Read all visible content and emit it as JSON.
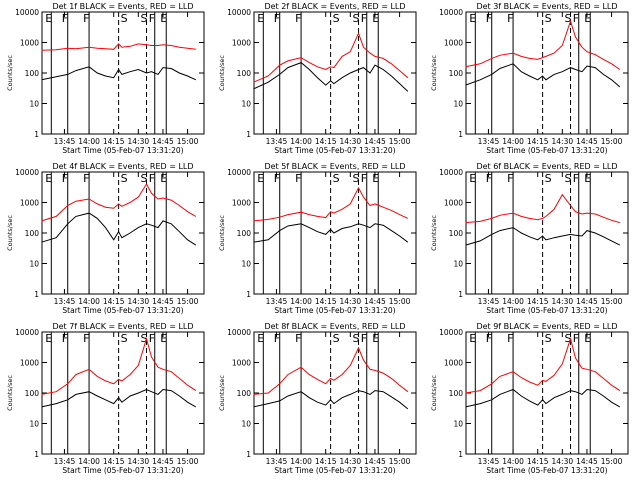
{
  "figure": {
    "colors": {
      "events": "#000000",
      "lld": "#ff0000",
      "frame": "#000000",
      "background": "#ffffff"
    },
    "yticks": [
      1,
      10,
      100,
      1000,
      10000
    ],
    "ytick_labels": [
      "1",
      "10",
      "100",
      "1000",
      "10000"
    ],
    "ylabel": "Counts/sec",
    "xlabel": "Start Time (05-Feb-07 13:31:20)",
    "xticks": [
      "13:45",
      "14:00",
      "14:15",
      "14:30",
      "14:45",
      "15:00"
    ],
    "markers": [
      {
        "label": "E",
        "time": "13:37",
        "style": "solid"
      },
      {
        "label": "F",
        "time": "13:47",
        "style": "solid"
      },
      {
        "label": "F",
        "time": "14:00",
        "style": "solid"
      },
      {
        "label": "S",
        "time": "14:18",
        "style": "dashed"
      },
      {
        "label": "S",
        "time": "14:35",
        "style": "dashed"
      },
      {
        "label": "F",
        "time": "14:40",
        "style": "solid"
      },
      {
        "label": "E",
        "time": "14:47",
        "style": "solid"
      }
    ]
  },
  "chart_data": [
    {
      "type": "line",
      "title": "Det 1f BLACK = Events, RED = LLD",
      "ylim": [
        1,
        10000
      ],
      "yscale": "log",
      "x": [
        "13:31",
        "13:40",
        "13:47",
        "13:52",
        "14:00",
        "14:05",
        "14:10",
        "14:15",
        "14:18",
        "14:20",
        "14:25",
        "14:30",
        "14:35",
        "14:38",
        "14:42",
        "14:45",
        "14:50",
        "14:55",
        "15:00",
        "15:05"
      ],
      "series": [
        {
          "name": "Events",
          "values": [
            60,
            75,
            90,
            120,
            160,
            100,
            80,
            70,
            130,
            90,
            110,
            130,
            100,
            110,
            90,
            150,
            140,
            100,
            80,
            60
          ]
        },
        {
          "name": "LLD",
          "values": [
            560,
            580,
            650,
            620,
            700,
            650,
            620,
            600,
            900,
            700,
            750,
            900,
            850,
            800,
            800,
            850,
            800,
            700,
            650,
            600
          ]
        }
      ]
    },
    {
      "type": "line",
      "title": "Det 2f BLACK = Events, RED = LLD",
      "ylim": [
        1,
        10000
      ],
      "yscale": "log",
      "x": [
        "13:31",
        "13:40",
        "13:47",
        "13:52",
        "14:00",
        "14:05",
        "14:10",
        "14:15",
        "14:18",
        "14:20",
        "14:25",
        "14:30",
        "14:35",
        "14:38",
        "14:42",
        "14:45",
        "14:50",
        "14:55",
        "15:00",
        "15:05"
      ],
      "series": [
        {
          "name": "Events",
          "values": [
            30,
            50,
            90,
            150,
            220,
            130,
            70,
            40,
            55,
            45,
            70,
            100,
            130,
            150,
            100,
            180,
            130,
            80,
            45,
            25
          ]
        },
        {
          "name": "LLD",
          "values": [
            50,
            80,
            180,
            250,
            320,
            220,
            160,
            130,
            160,
            150,
            350,
            500,
            2000,
            700,
            450,
            350,
            300,
            200,
            120,
            70
          ]
        }
      ]
    },
    {
      "type": "line",
      "title": "Det 3f BLACK = Events, RED = LLD",
      "ylim": [
        1,
        10000
      ],
      "yscale": "log",
      "x": [
        "13:31",
        "13:40",
        "13:47",
        "13:52",
        "14:00",
        "14:05",
        "14:10",
        "14:15",
        "14:18",
        "14:20",
        "14:25",
        "14:30",
        "14:35",
        "14:38",
        "14:42",
        "14:45",
        "14:50",
        "14:55",
        "15:00",
        "15:05"
      ],
      "series": [
        {
          "name": "Events",
          "values": [
            40,
            60,
            90,
            140,
            200,
            110,
            80,
            60,
            80,
            60,
            90,
            110,
            150,
            130,
            110,
            170,
            150,
            90,
            60,
            35
          ]
        },
        {
          "name": "LLD",
          "values": [
            160,
            200,
            300,
            380,
            450,
            350,
            300,
            280,
            320,
            350,
            450,
            800,
            5000,
            1500,
            700,
            500,
            400,
            280,
            200,
            130
          ]
        }
      ]
    },
    {
      "type": "line",
      "title": "Det 4f BLACK = Events, RED = LLD",
      "ylim": [
        1,
        10000
      ],
      "yscale": "log",
      "x": [
        "13:31",
        "13:40",
        "13:47",
        "13:52",
        "14:00",
        "14:05",
        "14:10",
        "14:15",
        "14:18",
        "14:20",
        "14:25",
        "14:30",
        "14:35",
        "14:38",
        "14:42",
        "14:45",
        "14:50",
        "14:55",
        "15:00",
        "15:05"
      ],
      "series": [
        {
          "name": "Events",
          "values": [
            50,
            70,
            200,
            350,
            450,
            300,
            150,
            60,
            110,
            70,
            100,
            150,
            200,
            180,
            150,
            250,
            200,
            110,
            60,
            40
          ]
        },
        {
          "name": "LLD",
          "values": [
            250,
            350,
            800,
            1100,
            1300,
            900,
            700,
            650,
            900,
            750,
            1000,
            1500,
            4000,
            2000,
            1300,
            1400,
            1200,
            800,
            500,
            350
          ]
        }
      ]
    },
    {
      "type": "line",
      "title": "Det 5f BLACK = Events, RED = LLD",
      "ylim": [
        1,
        10000
      ],
      "yscale": "log",
      "x": [
        "13:31",
        "13:40",
        "13:47",
        "13:52",
        "14:00",
        "14:05",
        "14:10",
        "14:15",
        "14:18",
        "14:20",
        "14:25",
        "14:30",
        "14:35",
        "14:38",
        "14:42",
        "14:45",
        "14:50",
        "14:55",
        "15:00",
        "15:05"
      ],
      "series": [
        {
          "name": "Events",
          "values": [
            50,
            60,
            120,
            170,
            200,
            150,
            110,
            90,
            130,
            100,
            140,
            160,
            200,
            180,
            150,
            200,
            180,
            120,
            80,
            50
          ]
        },
        {
          "name": "LLD",
          "values": [
            250,
            280,
            330,
            400,
            480,
            400,
            350,
            320,
            500,
            450,
            600,
            900,
            3000,
            1500,
            800,
            900,
            700,
            550,
            400,
            300
          ]
        }
      ]
    },
    {
      "type": "line",
      "title": "Det 6f BLACK = Events, RED = LLD",
      "ylim": [
        1,
        10000
      ],
      "yscale": "log",
      "x": [
        "13:31",
        "13:40",
        "13:47",
        "13:52",
        "14:00",
        "14:05",
        "14:10",
        "14:15",
        "14:18",
        "14:20",
        "14:25",
        "14:30",
        "14:35",
        "14:38",
        "14:42",
        "14:45",
        "14:50",
        "14:55",
        "15:00",
        "15:05"
      ],
      "series": [
        {
          "name": "Events",
          "values": [
            40,
            55,
            90,
            120,
            150,
            100,
            75,
            60,
            80,
            60,
            70,
            80,
            90,
            85,
            80,
            120,
            100,
            75,
            55,
            40
          ]
        },
        {
          "name": "LLD",
          "values": [
            220,
            240,
            300,
            380,
            450,
            350,
            300,
            270,
            300,
            350,
            600,
            1800,
            800,
            500,
            420,
            450,
            420,
            330,
            260,
            220
          ]
        }
      ]
    },
    {
      "type": "line",
      "title": "Det 7f BLACK = Events, RED = LLD",
      "ylim": [
        1,
        10000
      ],
      "yscale": "log",
      "x": [
        "13:31",
        "13:40",
        "13:47",
        "13:52",
        "14:00",
        "14:05",
        "14:10",
        "14:15",
        "14:18",
        "14:20",
        "14:25",
        "14:30",
        "14:35",
        "14:38",
        "14:42",
        "14:45",
        "14:50",
        "14:55",
        "15:00",
        "15:05"
      ],
      "series": [
        {
          "name": "Events",
          "values": [
            35,
            45,
            60,
            90,
            110,
            80,
            60,
            45,
            70,
            50,
            80,
            100,
            130,
            110,
            90,
            130,
            120,
            80,
            50,
            35
          ]
        },
        {
          "name": "LLD",
          "values": [
            90,
            110,
            200,
            400,
            600,
            350,
            250,
            200,
            280,
            250,
            400,
            800,
            6000,
            1500,
            700,
            600,
            500,
            300,
            180,
            120
          ]
        }
      ]
    },
    {
      "type": "line",
      "title": "Det 8f BLACK = Events, RED = LLD",
      "ylim": [
        1,
        10000
      ],
      "yscale": "log",
      "x": [
        "13:31",
        "13:40",
        "13:47",
        "13:52",
        "14:00",
        "14:05",
        "14:10",
        "14:15",
        "14:18",
        "14:20",
        "14:25",
        "14:30",
        "14:35",
        "14:38",
        "14:42",
        "14:45",
        "14:50",
        "14:55",
        "15:00",
        "15:05"
      ],
      "series": [
        {
          "name": "Events",
          "values": [
            35,
            45,
            55,
            80,
            110,
            70,
            50,
            40,
            60,
            45,
            70,
            90,
            120,
            110,
            90,
            120,
            110,
            75,
            50,
            30
          ]
        },
        {
          "name": "LLD",
          "values": [
            90,
            100,
            200,
            400,
            700,
            400,
            280,
            200,
            300,
            260,
            400,
            800,
            3000,
            1200,
            600,
            550,
            450,
            300,
            180,
            110
          ]
        }
      ]
    },
    {
      "type": "line",
      "title": "Det 9f BLACK = Events, RED = LLD",
      "ylim": [
        1,
        10000
      ],
      "yscale": "log",
      "x": [
        "13:31",
        "13:40",
        "13:47",
        "13:52",
        "14:00",
        "14:05",
        "14:10",
        "14:15",
        "14:18",
        "14:20",
        "14:25",
        "14:30",
        "14:35",
        "14:38",
        "14:42",
        "14:45",
        "14:50",
        "14:55",
        "15:00",
        "15:05"
      ],
      "series": [
        {
          "name": "Events",
          "values": [
            35,
            45,
            60,
            90,
            130,
            80,
            55,
            40,
            60,
            45,
            70,
            90,
            120,
            110,
            90,
            130,
            120,
            80,
            50,
            35
          ]
        },
        {
          "name": "LLD",
          "values": [
            100,
            120,
            200,
            350,
            500,
            320,
            230,
            180,
            260,
            240,
            380,
            900,
            6000,
            1400,
            650,
            600,
            500,
            300,
            180,
            120
          ]
        }
      ]
    }
  ]
}
